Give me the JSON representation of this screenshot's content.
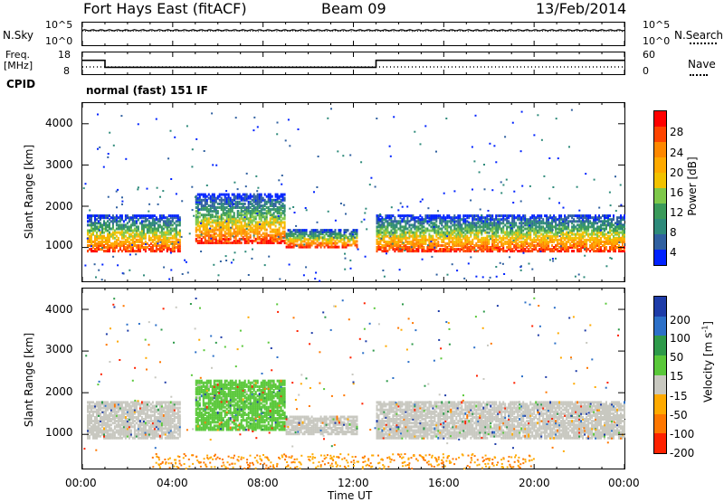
{
  "header": {
    "station": "Fort Hays East (fitACF)",
    "beam": "Beam 09",
    "date": "13/Feb/2014"
  },
  "top_panel": {
    "left_label": "N.Sky",
    "right_label": "N.Search",
    "left_ticks": [
      "10^5",
      "10^0"
    ],
    "right_ticks": [
      "10^5",
      "10^0"
    ]
  },
  "freq_panel": {
    "left_label_line1": "Freq.",
    "left_label_line2": "[MHz]",
    "right_label": "Nave",
    "left_ticks": [
      "18",
      "8"
    ],
    "right_ticks": [
      "60",
      "0"
    ]
  },
  "cpid": {
    "label": "CPID",
    "value": "normal (fast) 151 IF"
  },
  "power_panel": {
    "ylabel": "Slant Range [km]",
    "yticks": [
      "4000",
      "3000",
      "2000",
      "1000"
    ],
    "colorbar_label": "Power [dB]",
    "colorbar_ticks": [
      "28",
      "24",
      "20",
      "16",
      "12",
      "8",
      "4"
    ],
    "colors": [
      "#ff0000",
      "#ff4400",
      "#ff8800",
      "#ffaa00",
      "#f2c200",
      "#7ec84a",
      "#3a9a5a",
      "#2e8a7a",
      "#3060a0",
      "#0022ff"
    ]
  },
  "velocity_panel": {
    "ylabel": "Slant Range [km]",
    "yticks": [
      "4000",
      "3000",
      "2000",
      "1000"
    ],
    "colorbar_label": "Velocity [m s",
    "colorbar_label_sup": "-1",
    "colorbar_ticks": [
      "200",
      "100",
      "50",
      "15",
      "-15",
      "-50",
      "-100",
      "-200"
    ],
    "colors": [
      "#1e3ca8",
      "#2c70c8",
      "#2e9a4a",
      "#5ac83a",
      "#c8c8c0",
      "#ffaa00",
      "#ff7700",
      "#ff2200"
    ]
  },
  "x_axis": {
    "label": "Time UT",
    "ticks": [
      "00:00",
      "04:00",
      "08:00",
      "12:00",
      "16:00",
      "20:00",
      "00:00"
    ]
  },
  "chart_data": [
    {
      "type": "line",
      "title": "",
      "ylabel": "N.Sky / N.Search",
      "x": [
        "00:00",
        "04:00",
        "08:00",
        "12:00",
        "16:00",
        "20:00",
        "00:00"
      ],
      "series": [
        {
          "name": "N.Sky",
          "values": [
            3000,
            2500,
            2500,
            2500,
            3000,
            3000,
            3000
          ]
        },
        {
          "name": "N.Search",
          "values": [
            2000,
            2000,
            2000,
            2000,
            2000,
            2000,
            2000
          ]
        }
      ],
      "ylim": [
        1,
        100000
      ],
      "yscale": "log"
    },
    {
      "type": "line",
      "ylabel": "Freq. [MHz]",
      "x": [
        "00:00",
        "01:00",
        "01:00",
        "13:00",
        "13:00",
        "00:00"
      ],
      "series": [
        {
          "name": "Freq.",
          "values": [
            14.5,
            14.5,
            11,
            11,
            14.5,
            14.5
          ]
        },
        {
          "name": "Nave",
          "values": [
            12,
            12,
            12,
            12,
            12,
            12
          ]
        }
      ],
      "ylim": [
        8,
        18
      ]
    },
    {
      "type": "heatmap",
      "title": "",
      "ylabel": "Slant Range [km]",
      "xlabel": "Time UT",
      "xlim": [
        "00:00",
        "24:00"
      ],
      "ylim": [
        180,
        4500
      ],
      "colorbar": {
        "label": "Power [dB]",
        "range": [
          0,
          30
        ]
      },
      "features": [
        {
          "name": "band",
          "time_start_h": 0.2,
          "time_end_h": 4.3,
          "range_km": [
            900,
            1800
          ]
        },
        {
          "name": "arc",
          "time_start_h": 5.0,
          "time_end_h": 9.0,
          "range_km": [
            1100,
            2400
          ]
        },
        {
          "name": "band",
          "time_start_h": 9.0,
          "time_end_h": 12.0,
          "range_km": [
            1000,
            1400
          ]
        },
        {
          "name": "band",
          "time_start_h": 13.0,
          "time_end_h": 24.0,
          "range_km": [
            900,
            1800
          ]
        }
      ]
    },
    {
      "type": "heatmap",
      "ylabel": "Slant Range [km]",
      "xlabel": "Time UT",
      "xlim": [
        "00:00",
        "24:00"
      ],
      "ylim": [
        180,
        4500
      ],
      "colorbar": {
        "label": "Velocity [m s-1]",
        "range": [
          -250,
          250
        ]
      },
      "features": [
        {
          "name": "ground scatter",
          "time_start_h": 0.2,
          "time_end_h": 4.3,
          "range_km": [
            900,
            1800
          ],
          "velocity": 0
        },
        {
          "name": "ionospheric scatter",
          "time_start_h": 5.0,
          "time_end_h": 9.0,
          "range_km": [
            1100,
            2400
          ],
          "velocity": 60
        },
        {
          "name": "ground scatter",
          "time_start_h": 13.0,
          "time_end_h": 24.0,
          "range_km": [
            900,
            1800
          ],
          "velocity": 0
        },
        {
          "name": "near-range",
          "time_start_h": 3.0,
          "time_end_h": 20.0,
          "range_km": [
            200,
            600
          ],
          "velocity": -60
        }
      ]
    }
  ]
}
